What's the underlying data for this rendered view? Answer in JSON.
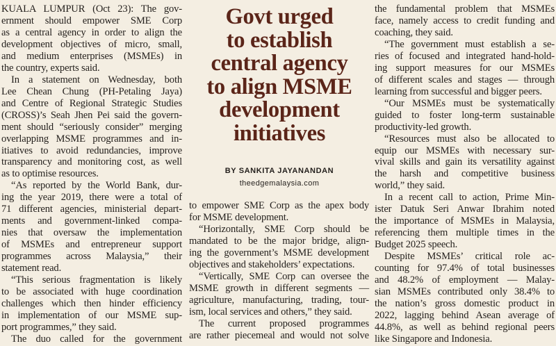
{
  "headline": [
    "Govt urged",
    "to establish",
    "central agency",
    "to align MSME",
    "development",
    "initiatives"
  ],
  "byline": {
    "author": "BY SANKITA JAYANANDAN",
    "website": "theedgemalaysia.com"
  },
  "columns": [
    {
      "paragraphs": [
        {
          "lines": [
            "KUALA LUMPUR (Oct 23): The gov-",
            "ernment should empower SME Corp",
            "as a central agency in order to align the",
            "development objectives of micro, small,",
            "and medium enterprises (MSMEs) in",
            "the country, experts said."
          ]
        },
        {
          "lines": [
            "In a statement on Wednesday, both",
            "Lee Chean Chung (PH-Petaling Jaya)",
            "and Centre of Regional Strategic Studies",
            "(CROSS)’s Seah Jhen Pei said the govern-",
            "ment should “seriously consider” merging",
            "overlapping MSME programmes and in-",
            "itiatives to avoid redundancies, improve",
            "transparency and monitoring cost, as well",
            "as to optimise resources."
          ]
        },
        {
          "lines": [
            "“As reported by the World Bank, dur-",
            "ing the year 2019, there were a total of",
            "71 different agencies, ministerial depart-",
            "ments and government-linked compa-",
            "nies that oversaw the implementation",
            "of MSMEs and entrepreneur support",
            "programmes across Malaysia,” their",
            "statement read."
          ]
        },
        {
          "lines": [
            "“This serious fragmentation is likely",
            "to be associated with huge coordination",
            "challenges which then hinder efficiency",
            "in implementation of our MSME sup-",
            "port programmes,” they said."
          ]
        },
        {
          "lines": [
            "The duo called for the government"
          ]
        }
      ]
    },
    {
      "paragraphs": [
        {
          "lines": [
            "to empower SME Corp as the apex body",
            "for MSME development."
          ]
        },
        {
          "lines": [
            "“Horizontally, SME Corp should be",
            "mandated to be the major bridge, align-",
            "ing the government’s MSME development",
            "objectives and stakeholders’ expectations."
          ]
        },
        {
          "lines": [
            "“Vertically, SME Corp can oversee the",
            "MSME growth in different segments —",
            "agriculture, manufacturing, trading, tour-",
            "ism, local services and others,” they said."
          ]
        },
        {
          "lines": [
            "The current proposed programmes",
            "are rather piecemeal and would not solve"
          ]
        }
      ]
    },
    {
      "paragraphs": [
        {
          "lines": [
            "the fundamental problem that MSMEs",
            "face, namely access to credit funding and",
            "coaching, they said."
          ]
        },
        {
          "lines": [
            "“The government must establish a se-",
            "ries of focused and integrated hand-hold-",
            "ing support measures for our MSMEs",
            "of different scales and stages — through",
            "learning from successful and bigger peers."
          ]
        },
        {
          "lines": [
            "“Our MSMEs must be systematically",
            "guided to foster long-term sustainable",
            "productivity-led growth."
          ]
        },
        {
          "lines": [
            "“Resources must also be allocated to",
            "equip our MSMEs with necessary sur-",
            "vival skills and gain its versatility against",
            "the harsh and competitive business",
            "world,” they said."
          ]
        },
        {
          "lines": [
            "In a recent call to action, Prime Min-",
            "ister Datuk Seri Anwar Ibrahim noted",
            "the importance of MSMEs in Malaysia,",
            "referencing them multiple times in the",
            "Budget 2025 speech."
          ]
        },
        {
          "lines": [
            "Despite MSMEs’ critical role ac-",
            "counting for 97.4% of total businesses",
            "and 48.2% of employment — Malay-",
            "sian MSMEs contributed only 38.4% to",
            "the nation’s gross domestic product in",
            "2022, lagging behind Asean average of",
            "44.8%, as well as behind regional peers",
            "like Singapore and Indonesia."
          ]
        }
      ]
    }
  ]
}
